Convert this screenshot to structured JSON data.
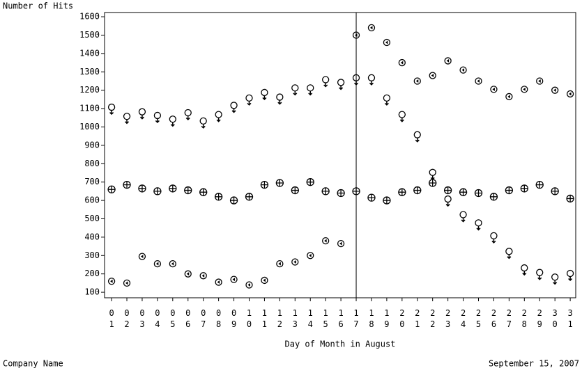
{
  "chart_data": {
    "type": "scatter",
    "y_label": "Number of Hits",
    "x_label": "Day of Month in August",
    "footer_left": "Company Name",
    "footer_right": "September 15, 2007",
    "x": [
      1,
      2,
      3,
      4,
      5,
      6,
      7,
      8,
      9,
      10,
      11,
      12,
      13,
      14,
      15,
      16,
      17,
      18,
      19,
      20,
      21,
      22,
      23,
      24,
      25,
      26,
      27,
      28,
      29,
      30,
      31
    ],
    "series": [
      {
        "marker": "female",
        "color": "#000000",
        "values": [
          1100,
          1050,
          1075,
          1055,
          1035,
          1070,
          1025,
          1060,
          1110,
          1150,
          1180,
          1155,
          1205,
          1205,
          1250,
          1235,
          1260,
          1260,
          1150,
          1060,
          950,
          745,
          600,
          515,
          470,
          400,
          315,
          225,
          200,
          175,
          195
        ]
      },
      {
        "marker": "left-circle",
        "color": "#000000",
        "values": [
          160,
          150,
          295,
          255,
          255,
          200,
          190,
          155,
          170,
          140,
          165,
          255,
          265,
          300,
          380,
          365,
          1500,
          1540,
          1460,
          1350,
          1250,
          1280,
          1360,
          1310,
          1250,
          1205,
          1165,
          1205,
          1250,
          1200,
          1180
        ]
      },
      {
        "marker": "plus-circle",
        "color": "#000000",
        "values": [
          660,
          685,
          665,
          650,
          665,
          655,
          645,
          620,
          600,
          620,
          685,
          695,
          655,
          700,
          650,
          640,
          650,
          615,
          600,
          645,
          655,
          695,
          655,
          645,
          640,
          620,
          655,
          665,
          685,
          650,
          610
        ]
      }
    ],
    "xlim": [
      0.54,
      31.36
    ],
    "ylim": [
      70,
      1623
    ],
    "xticks": [
      {
        "value": 1,
        "label": "01"
      },
      {
        "value": 2,
        "label": "02"
      },
      {
        "value": 3,
        "label": "03"
      },
      {
        "value": 4,
        "label": "04"
      },
      {
        "value": 5,
        "label": "05"
      },
      {
        "value": 6,
        "label": "06"
      },
      {
        "value": 7,
        "label": "07"
      },
      {
        "value": 8,
        "label": "08"
      },
      {
        "value": 9,
        "label": "09"
      },
      {
        "value": 10,
        "label": "10"
      },
      {
        "value": 11,
        "label": "11"
      },
      {
        "value": 12,
        "label": "12"
      },
      {
        "value": 13,
        "label": "13"
      },
      {
        "value": 14,
        "label": "14"
      },
      {
        "value": 15,
        "label": "15"
      },
      {
        "value": 16,
        "label": "16"
      },
      {
        "value": 17,
        "label": "17"
      },
      {
        "value": 18,
        "label": "18"
      },
      {
        "value": 19,
        "label": "19"
      },
      {
        "value": 20,
        "label": "20"
      },
      {
        "value": 21,
        "label": "21"
      },
      {
        "value": 22,
        "label": "22"
      },
      {
        "value": 23,
        "label": "23"
      },
      {
        "value": 24,
        "label": "24"
      },
      {
        "value": 25,
        "label": "25"
      },
      {
        "value": 26,
        "label": "26"
      },
      {
        "value": 27,
        "label": "27"
      },
      {
        "value": 28,
        "label": "28"
      },
      {
        "value": 29,
        "label": "29"
      },
      {
        "value": 30,
        "label": "30"
      },
      {
        "value": 31,
        "label": "31"
      }
    ],
    "yticks": [
      100,
      200,
      300,
      400,
      500,
      600,
      700,
      800,
      900,
      1000,
      1100,
      1200,
      1300,
      1400,
      1500,
      1600
    ],
    "reference_x": 17,
    "grid": false
  }
}
